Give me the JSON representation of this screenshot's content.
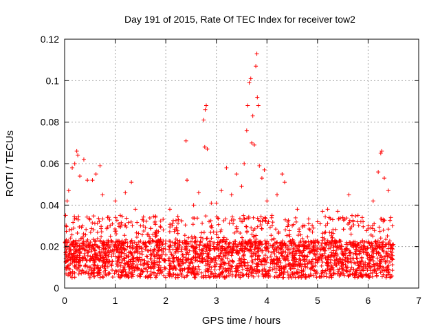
{
  "chart_data": {
    "type": "scatter",
    "title": "Day 191 of 2015, Rate Of TEC Index for receiver tow2",
    "xlabel": "GPS time / hours",
    "ylabel": "ROTI / TECUs",
    "xlim": [
      0,
      7
    ],
    "ylim": [
      0,
      0.12
    ],
    "x_ticks": [
      0,
      1,
      2,
      3,
      4,
      5,
      6,
      7
    ],
    "x_tick_labels": [
      "0",
      "1",
      "2",
      "3",
      "4",
      "5",
      "6",
      "7"
    ],
    "y_ticks": [
      0,
      0.02,
      0.04,
      0.06,
      0.08,
      0.1,
      0.12
    ],
    "y_tick_labels": [
      "0",
      "0.02",
      "0.04",
      "0.06",
      "0.08",
      "0.1",
      "0.12"
    ],
    "grid": true,
    "marker": "+",
    "color": "#ff0000",
    "data_gap": [
      2.0,
      2.05
    ],
    "x_range_of_data": [
      0.0,
      6.5
    ],
    "series": [
      {
        "name": "tow2",
        "points": [
          [
            0.02,
            0.035
          ],
          [
            0.05,
            0.042
          ],
          [
            0.08,
            0.047
          ],
          [
            0.1,
            0.028
          ],
          [
            0.15,
            0.058
          ],
          [
            0.2,
            0.06
          ],
          [
            0.24,
            0.066
          ],
          [
            0.26,
            0.064
          ],
          [
            0.3,
            0.054
          ],
          [
            0.38,
            0.062
          ],
          [
            0.45,
            0.052
          ],
          [
            0.55,
            0.052
          ],
          [
            0.62,
            0.055
          ],
          [
            0.7,
            0.059
          ],
          [
            0.75,
            0.045
          ],
          [
            0.9,
            0.03
          ],
          [
            1.0,
            0.042
          ],
          [
            1.1,
            0.035
          ],
          [
            1.2,
            0.046
          ],
          [
            1.32,
            0.051
          ],
          [
            1.4,
            0.038
          ],
          [
            1.5,
            0.03
          ],
          [
            1.65,
            0.026
          ],
          [
            1.8,
            0.025
          ],
          [
            1.95,
            0.028
          ],
          [
            2.08,
            0.038
          ],
          [
            2.25,
            0.033
          ],
          [
            2.4,
            0.071
          ],
          [
            2.42,
            0.052
          ],
          [
            2.55,
            0.04
          ],
          [
            2.65,
            0.046
          ],
          [
            2.75,
            0.081
          ],
          [
            2.77,
            0.068
          ],
          [
            2.78,
            0.086
          ],
          [
            2.8,
            0.088
          ],
          [
            2.82,
            0.067
          ],
          [
            2.9,
            0.041
          ],
          [
            3.0,
            0.041
          ],
          [
            3.1,
            0.047
          ],
          [
            3.2,
            0.058
          ],
          [
            3.3,
            0.045
          ],
          [
            3.4,
            0.055
          ],
          [
            3.5,
            0.049
          ],
          [
            3.55,
            0.06
          ],
          [
            3.6,
            0.076
          ],
          [
            3.62,
            0.088
          ],
          [
            3.65,
            0.099
          ],
          [
            3.68,
            0.101
          ],
          [
            3.7,
            0.07
          ],
          [
            3.72,
            0.083
          ],
          [
            3.75,
            0.069
          ],
          [
            3.78,
            0.107
          ],
          [
            3.8,
            0.113
          ],
          [
            3.81,
            0.092
          ],
          [
            3.83,
            0.088
          ],
          [
            3.85,
            0.059
          ],
          [
            3.9,
            0.053
          ],
          [
            3.95,
            0.057
          ],
          [
            4.0,
            0.042
          ],
          [
            4.1,
            0.035
          ],
          [
            4.2,
            0.045
          ],
          [
            4.3,
            0.055
          ],
          [
            4.35,
            0.051
          ],
          [
            4.5,
            0.03
          ],
          [
            4.6,
            0.038
          ],
          [
            4.75,
            0.03
          ],
          [
            4.9,
            0.027
          ],
          [
            5.0,
            0.032
          ],
          [
            5.1,
            0.037
          ],
          [
            5.2,
            0.038
          ],
          [
            5.3,
            0.033
          ],
          [
            5.4,
            0.037
          ],
          [
            5.5,
            0.034
          ],
          [
            5.62,
            0.045
          ],
          [
            5.7,
            0.032
          ],
          [
            5.8,
            0.035
          ],
          [
            5.9,
            0.032
          ],
          [
            6.0,
            0.03
          ],
          [
            6.1,
            0.042
          ],
          [
            6.2,
            0.056
          ],
          [
            6.25,
            0.065
          ],
          [
            6.27,
            0.066
          ],
          [
            6.32,
            0.053
          ],
          [
            6.4,
            0.047
          ],
          [
            6.45,
            0.034
          ],
          [
            6.48,
            0.03
          ]
        ]
      }
    ]
  }
}
